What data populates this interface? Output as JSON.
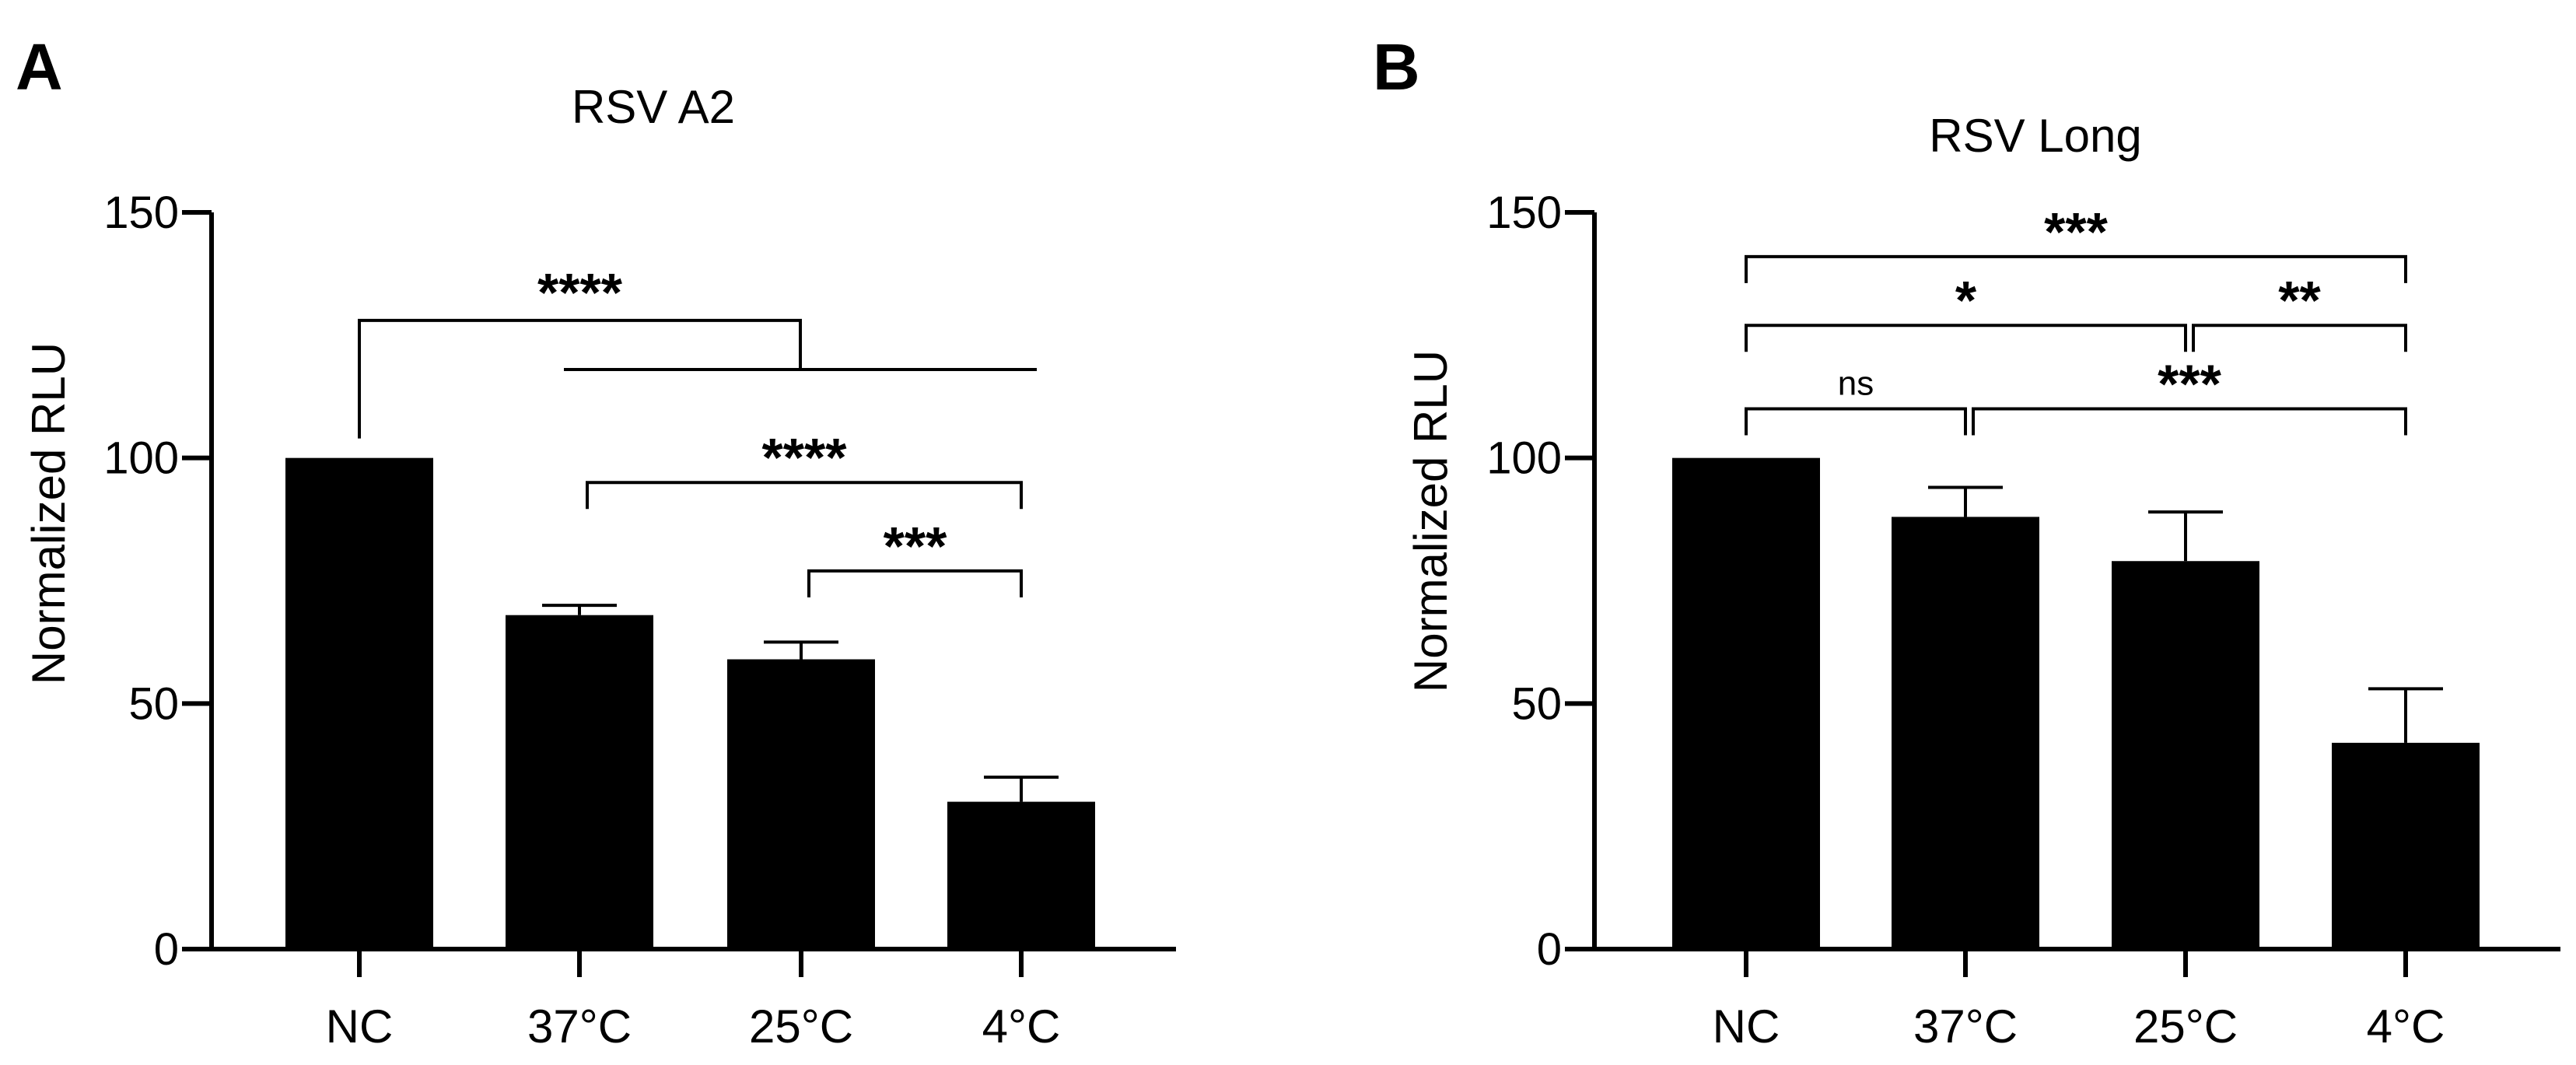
{
  "chart_data": [
    {
      "type": "bar",
      "panel": "A",
      "title": "RSV A2",
      "xlabel": "",
      "ylabel": "Normalized RLU",
      "ylim": [
        0,
        150
      ],
      "yticks": [
        0,
        50,
        100,
        150
      ],
      "categories": [
        "NC",
        "37°C",
        "25°C",
        "4°C"
      ],
      "values": [
        100,
        68,
        59,
        30
      ],
      "errors": [
        0,
        2,
        3.5,
        5
      ],
      "bar_color": "#000000",
      "significance": [
        {
          "from": 0,
          "to": [
            1,
            2,
            3
          ],
          "label": "****",
          "level": 128,
          "group_level": 118
        },
        {
          "from": 1,
          "to": 3,
          "label": "****",
          "level": 95
        },
        {
          "from": 2,
          "to": 3,
          "label": "***",
          "level": 77
        }
      ]
    },
    {
      "type": "bar",
      "panel": "B",
      "title": "RSV Long",
      "xlabel": "",
      "ylabel": "Normalized RLU",
      "ylim": [
        0,
        150
      ],
      "yticks": [
        0,
        50,
        100,
        150
      ],
      "categories": [
        "NC",
        "37°C",
        "25°C",
        "4°C"
      ],
      "values": [
        100,
        88,
        79,
        42
      ],
      "errors": [
        0,
        6,
        10,
        11
      ],
      "bar_color": "#000000",
      "significance": [
        {
          "from": 0,
          "to": 3,
          "label": "***",
          "level": 141
        },
        {
          "from": 0,
          "to": 2,
          "label": "*",
          "level": 127
        },
        {
          "from": 2,
          "to": 3,
          "label": "**",
          "level": 127
        },
        {
          "from": 0,
          "to": 1,
          "label": "ns",
          "level": 110
        },
        {
          "from": 1,
          "to": 3,
          "label": "***",
          "level": 110
        }
      ]
    }
  ]
}
